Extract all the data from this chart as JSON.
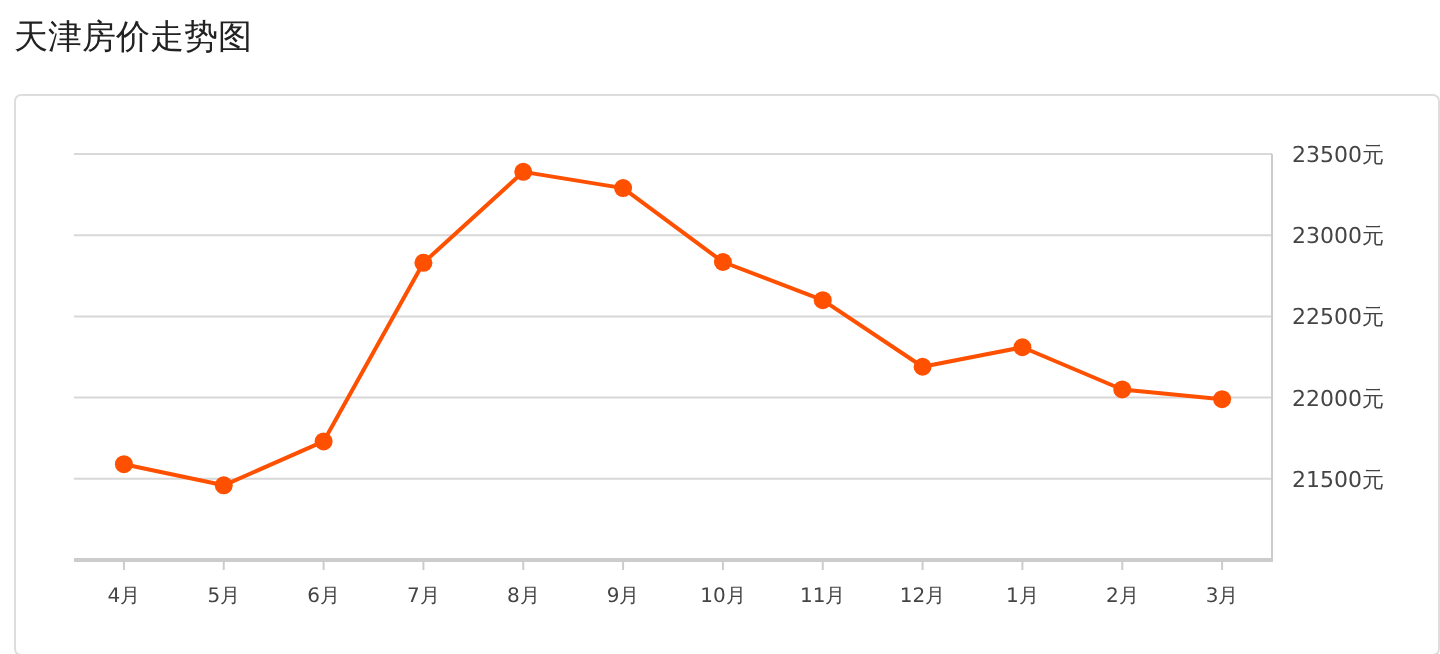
{
  "chart_data": {
    "type": "line",
    "title": "天津房价走势图",
    "categories": [
      "4月",
      "5月",
      "6月",
      "7月",
      "8月",
      "9月",
      "10月",
      "11月",
      "12月",
      "1月",
      "2月",
      "3月"
    ],
    "series": [
      {
        "color": "#ff5000",
        "values": [
          21590,
          21460,
          21730,
          22830,
          23390,
          23290,
          22835,
          22600,
          22190,
          22310,
          22050,
          21990
        ]
      }
    ],
    "ylim": [
      21000,
      23500
    ],
    "yticks": [
      {
        "value": 21500,
        "label": "21500元"
      },
      {
        "value": 22000,
        "label": "22000元"
      },
      {
        "value": 22500,
        "label": "22500元"
      },
      {
        "value": 23000,
        "label": "23000元"
      },
      {
        "value": 23500,
        "label": "23500元"
      }
    ],
    "grid": "y",
    "marker": "circle",
    "line_style": "solid"
  }
}
